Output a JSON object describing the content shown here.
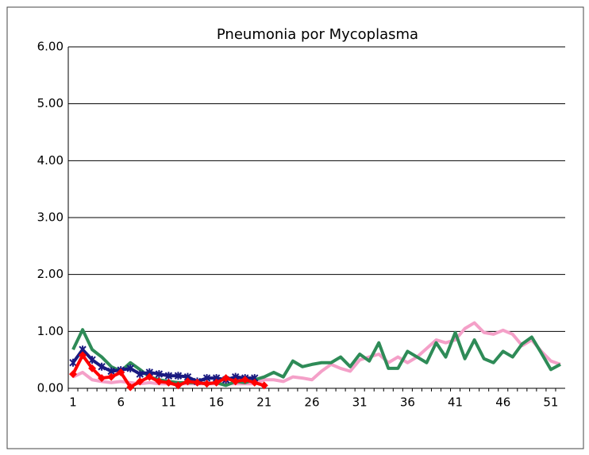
{
  "chart_data": {
    "type": "line",
    "title": "Pneumonia por Mycoplasma",
    "categories": [
      1,
      null,
      null,
      null,
      null,
      6,
      null,
      null,
      null,
      null,
      11,
      null,
      null,
      null,
      null,
      16,
      null,
      null,
      null,
      null,
      21,
      null,
      null,
      null,
      null,
      26,
      null,
      null,
      null,
      null,
      31,
      null,
      null,
      null,
      null,
      36,
      null,
      null,
      null,
      null,
      41,
      null,
      null,
      null,
      null,
      46,
      null,
      null,
      null,
      null,
      51,
      null
    ],
    "series": [
      {
        "color": "#f4a0c8",
        "marker": "none",
        "values": [
          0.2,
          0.28,
          0.15,
          0.12,
          0.1,
          0.12,
          0.1,
          0.08,
          0.1,
          0.08,
          0.08,
          0.08,
          0.08,
          0.08,
          0.08,
          0.08,
          0.08,
          0.08,
          0.08,
          0.08,
          0.15,
          0.15,
          0.12,
          0.2,
          0.18,
          0.15,
          0.3,
          0.42,
          0.35,
          0.3,
          0.5,
          0.55,
          0.6,
          0.45,
          0.55,
          0.45,
          0.55,
          0.7,
          0.85,
          0.8,
          0.85,
          1.05,
          1.15,
          0.98,
          0.95,
          1.02,
          0.95,
          0.75,
          0.85,
          0.65,
          0.48,
          0.42
        ]
      },
      {
        "color": "#2e8b57",
        "marker": "none",
        "values": [
          0.68,
          1.03,
          0.68,
          0.55,
          0.38,
          0.3,
          0.45,
          0.33,
          0.2,
          0.15,
          0.12,
          0.1,
          0.1,
          0.1,
          0.08,
          0.1,
          0.05,
          0.12,
          0.1,
          0.15,
          0.2,
          0.28,
          0.2,
          0.48,
          0.38,
          0.42,
          0.45,
          0.45,
          0.55,
          0.38,
          0.6,
          0.48,
          0.8,
          0.35,
          0.35,
          0.65,
          0.55,
          0.45,
          0.8,
          0.55,
          0.98,
          0.52,
          0.85,
          0.52,
          0.45,
          0.65,
          0.55,
          0.78,
          0.9,
          0.62,
          0.33,
          0.42
        ]
      },
      {
        "color": "#1a1a80",
        "marker": "star",
        "values": [
          0.45,
          0.68,
          0.5,
          0.38,
          0.3,
          0.32,
          0.35,
          0.25,
          0.28,
          0.25,
          0.22,
          0.22,
          0.2,
          0.12,
          0.18,
          0.18,
          0.15,
          0.2,
          0.18,
          0.18,
          null,
          null,
          null,
          null,
          null,
          null,
          null,
          null,
          null,
          null,
          null,
          null,
          null,
          null,
          null,
          null,
          null,
          null,
          null,
          null,
          null,
          null,
          null,
          null,
          null,
          null,
          null,
          null,
          null,
          null,
          null,
          null
        ]
      },
      {
        "color": "#ff0000",
        "marker": "diamond",
        "values": [
          0.25,
          0.58,
          0.35,
          0.18,
          0.2,
          0.28,
          0.02,
          0.12,
          0.2,
          0.12,
          0.1,
          0.05,
          0.12,
          0.1,
          0.08,
          0.1,
          0.18,
          0.12,
          0.15,
          0.1,
          0.05,
          null,
          null,
          null,
          null,
          null,
          null,
          null,
          null,
          null,
          null,
          null,
          null,
          null,
          null,
          null,
          null,
          null,
          null,
          null,
          null,
          null,
          null,
          null,
          null,
          null,
          null,
          null,
          null,
          null,
          null,
          null
        ]
      }
    ],
    "ylim": [
      0,
      6
    ],
    "yticks": [
      {
        "value": 0,
        "label": "0.00"
      },
      {
        "value": 1,
        "label": "1.00"
      },
      {
        "value": 2,
        "label": "2.00"
      },
      {
        "value": 3,
        "label": "3.00"
      },
      {
        "value": 4,
        "label": "4.00"
      },
      {
        "value": 5,
        "label": "5.00"
      },
      {
        "value": 6,
        "label": "6.00"
      }
    ],
    "grid": true
  }
}
